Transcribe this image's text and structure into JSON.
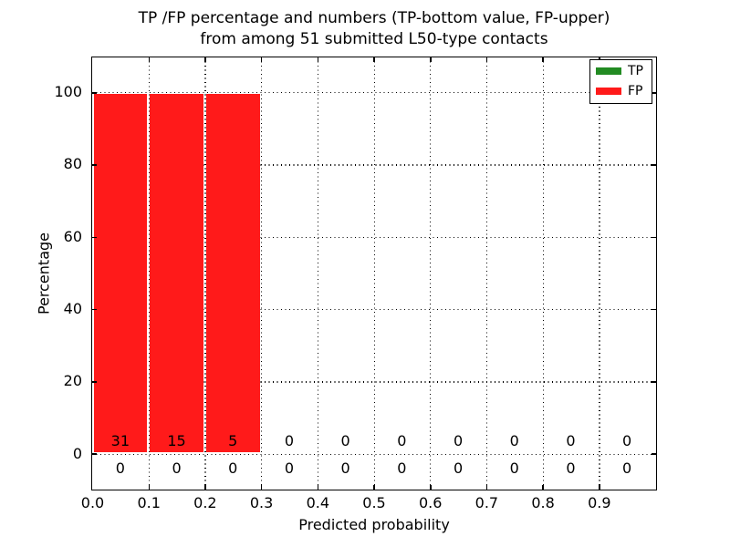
{
  "figure": {
    "title_line1": "TP /FP percentage and numbers (TP-bottom value, FP-upper)",
    "title_line2": "from among 51 submitted L50-type contacts",
    "xlabel": "Predicted probability",
    "ylabel": "Percentage"
  },
  "legend": {
    "items": [
      {
        "label": "TP",
        "color": "#228b22"
      },
      {
        "label": "FP",
        "color": "#ff1a1a"
      }
    ]
  },
  "chart_data": {
    "type": "bar",
    "stacked": true,
    "title": "TP /FP percentage and numbers (TP-bottom value, FP-upper) from among 51 submitted L50-type contacts",
    "xlabel": "Predicted probability",
    "ylabel": "Percentage",
    "total_contacts": 51,
    "bin_width": 0.1,
    "bin_starts": [
      0.0,
      0.1,
      0.2,
      0.3,
      0.4,
      0.5,
      0.6,
      0.7,
      0.8,
      0.9
    ],
    "x_tick_labels": [
      "0.0",
      "0.1",
      "0.2",
      "0.3",
      "0.4",
      "0.5",
      "0.6",
      "0.7",
      "0.8",
      "0.9"
    ],
    "y_tick_values": [
      0,
      20,
      40,
      60,
      80,
      100
    ],
    "y_tick_labels": [
      "0",
      "20",
      "40",
      "60",
      "80",
      "100"
    ],
    "xlim": [
      0.0,
      1.0
    ],
    "ylim": [
      -10,
      110
    ],
    "grid": true,
    "grid_style": "dotted",
    "legend_position": "upper right",
    "series": [
      {
        "name": "TP",
        "color": "#228b22",
        "counts": [
          0,
          0,
          0,
          0,
          0,
          0,
          0,
          0,
          0,
          0
        ],
        "percent": [
          0,
          0,
          0,
          0,
          0,
          0,
          0,
          0,
          0,
          0
        ]
      },
      {
        "name": "FP",
        "color": "#ff1a1a",
        "counts": [
          31,
          15,
          5,
          0,
          0,
          0,
          0,
          0,
          0,
          0
        ],
        "percent": [
          100,
          100,
          100,
          0,
          0,
          0,
          0,
          0,
          0,
          0
        ]
      }
    ]
  }
}
